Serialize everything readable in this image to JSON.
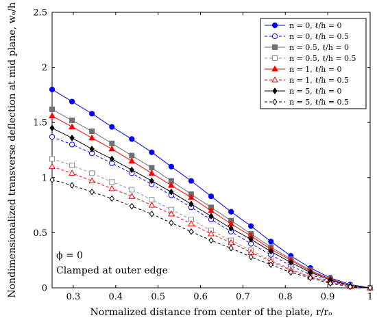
{
  "chart_data": {
    "type": "line",
    "xlabel": "Normalized distance from center of the plate, r/rₒ",
    "ylabel": "Nondimensionalized transverse deflection at mid plane, wₒ/h",
    "xlim": [
      0.25,
      1.0
    ],
    "ylim": [
      0,
      2.5
    ],
    "xticks": [
      0.3,
      0.4,
      0.5,
      0.6,
      0.7,
      0.8,
      0.9,
      1
    ],
    "xtick_labels": [
      "0.3",
      "0.4",
      "0.5",
      "0.6",
      "0.7",
      "0.8",
      "0.9",
      "1"
    ],
    "yticks": [
      0,
      0.5,
      1,
      1.5,
      2,
      2.5
    ],
    "ytick_labels": [
      "0",
      "0.5",
      "1",
      "1.5",
      "2",
      "2.5"
    ],
    "grid": false,
    "legend_position": "top-right",
    "annotations": [
      "ϕ = 0",
      "Clamped at outer edge"
    ],
    "x": [
      0.25,
      0.297,
      0.344,
      0.391,
      0.438,
      0.485,
      0.531,
      0.578,
      0.625,
      0.672,
      0.719,
      0.766,
      0.813,
      0.859,
      0.906,
      0.953,
      1.0
    ],
    "series": [
      {
        "name": "n = 0,    ℓ/h = 0",
        "color": "#0000ff",
        "marker": "circle-filled",
        "dashed": false,
        "values": [
          1.8,
          1.69,
          1.58,
          1.46,
          1.35,
          1.23,
          1.1,
          0.97,
          0.83,
          0.69,
          0.56,
          0.42,
          0.29,
          0.18,
          0.09,
          0.03,
          0.0
        ]
      },
      {
        "name": "n = 0,    ℓ/h = 0.5",
        "color": "#0000ff",
        "marker": "circle-open",
        "dashed": true,
        "values": [
          1.37,
          1.3,
          1.22,
          1.13,
          1.04,
          0.94,
          0.84,
          0.73,
          0.62,
          0.51,
          0.4,
          0.3,
          0.2,
          0.12,
          0.06,
          0.02,
          0.0
        ]
      },
      {
        "name": "n = 0.5, ℓ/h = 0",
        "color": "#707070",
        "marker": "square-filled",
        "dashed": false,
        "values": [
          1.62,
          1.52,
          1.42,
          1.31,
          1.2,
          1.09,
          0.97,
          0.85,
          0.73,
          0.61,
          0.49,
          0.37,
          0.26,
          0.16,
          0.08,
          0.02,
          0.0
        ]
      },
      {
        "name": "n = 0.5, ℓ/h = 0.5",
        "color": "#909090",
        "marker": "square-open",
        "dashed": true,
        "values": [
          1.17,
          1.11,
          1.04,
          0.96,
          0.89,
          0.8,
          0.71,
          0.62,
          0.52,
          0.43,
          0.34,
          0.25,
          0.17,
          0.1,
          0.05,
          0.02,
          0.0
        ]
      },
      {
        "name": "n = 1,    ℓ/h = 0",
        "color": "#ff0000",
        "marker": "triangle-filled",
        "dashed": false,
        "values": [
          1.56,
          1.46,
          1.36,
          1.26,
          1.15,
          1.04,
          0.93,
          0.82,
          0.7,
          0.58,
          0.47,
          0.35,
          0.25,
          0.15,
          0.08,
          0.02,
          0.0
        ]
      },
      {
        "name": "n = 1,    ℓ/h = 0.5",
        "color": "#ff0000",
        "marker": "triangle-open",
        "dashed": true,
        "values": [
          1.1,
          1.04,
          0.97,
          0.9,
          0.83,
          0.75,
          0.67,
          0.58,
          0.49,
          0.41,
          0.32,
          0.24,
          0.16,
          0.1,
          0.05,
          0.01,
          0.0
        ]
      },
      {
        "name": "n = 5,    ℓ/h = 0",
        "color": "#000000",
        "marker": "diamond-filled",
        "dashed": false,
        "values": [
          1.45,
          1.36,
          1.26,
          1.17,
          1.07,
          0.97,
          0.87,
          0.76,
          0.65,
          0.54,
          0.44,
          0.33,
          0.23,
          0.14,
          0.07,
          0.02,
          0.0
        ]
      },
      {
        "name": "n = 5,    ℓ/h = 0.5",
        "color": "#000000",
        "marker": "diamond-open",
        "dashed": true,
        "values": [
          0.98,
          0.93,
          0.87,
          0.81,
          0.74,
          0.67,
          0.59,
          0.51,
          0.43,
          0.36,
          0.28,
          0.21,
          0.14,
          0.09,
          0.04,
          0.01,
          0.0
        ]
      }
    ]
  }
}
